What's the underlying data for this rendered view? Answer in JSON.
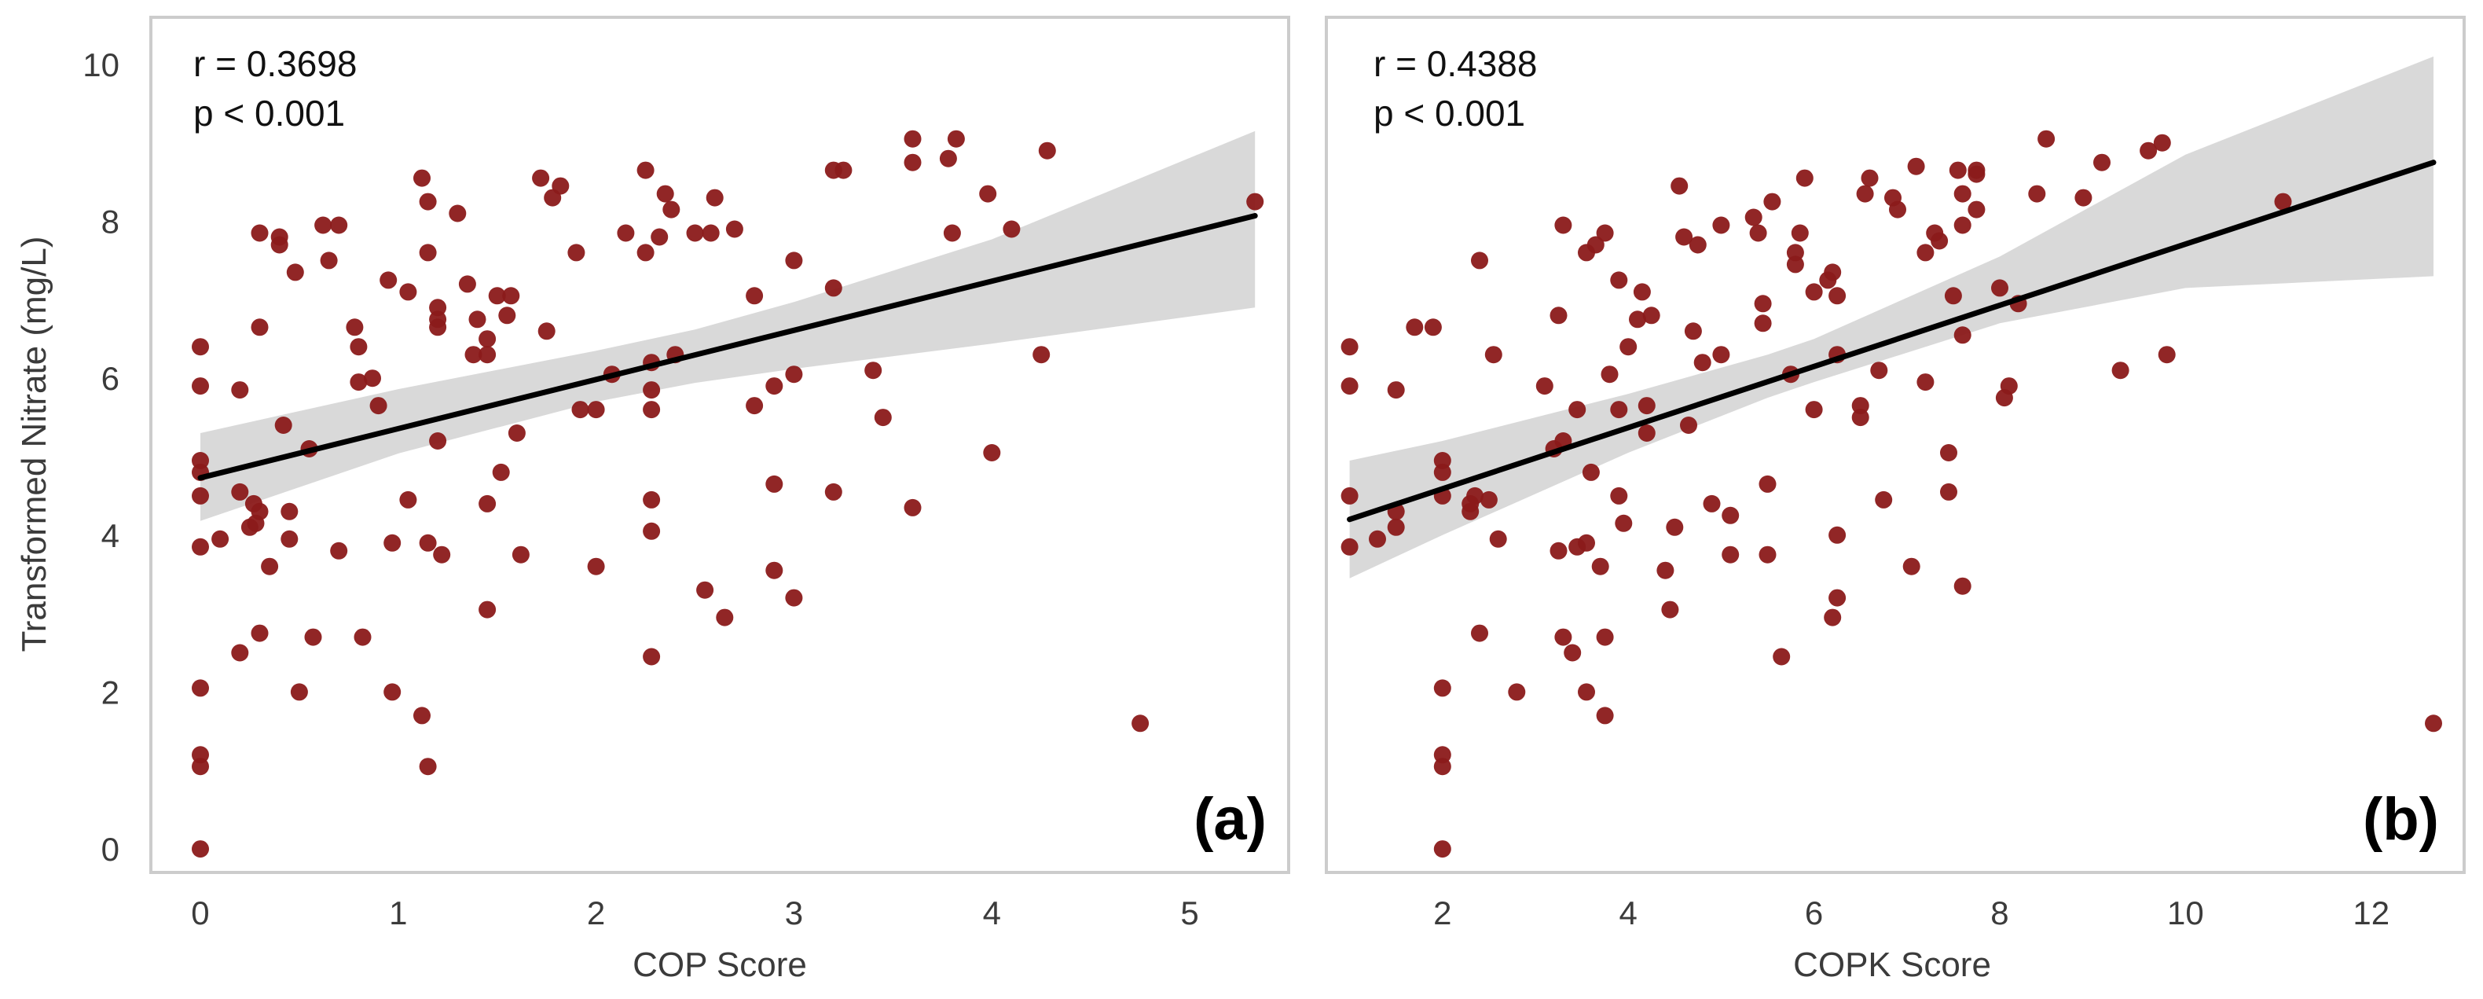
{
  "figure": {
    "ylabel": "Transformed Nitrate (mg/L)"
  },
  "chart_data": [
    {
      "type": "scatter",
      "panel_label": "(a)",
      "xlabel": "COP Score",
      "ylabel": "Transformed Nitrate (mg/L)",
      "xlim": [
        -0.25,
        5.5
      ],
      "ylim": [
        -0.3,
        10.6
      ],
      "xticks": [
        0,
        1,
        2,
        3,
        4,
        5
      ],
      "yticks": [
        0,
        2,
        4,
        6,
        8,
        10
      ],
      "annotation": {
        "r": "r = 0.3698",
        "p": "p < 0.001"
      },
      "regression": {
        "x_range": [
          0,
          5.33
        ],
        "line": [
          [
            0,
            4.73
          ],
          [
            5.33,
            8.07
          ]
        ],
        "ci": [
          [
            0,
            4.18,
            5.3
          ],
          [
            1,
            5.04,
            5.86
          ],
          [
            2,
            5.7,
            6.35
          ],
          [
            2.5,
            5.94,
            6.62
          ],
          [
            3,
            6.12,
            6.97
          ],
          [
            4,
            6.44,
            7.77
          ],
          [
            5.33,
            6.9,
            9.15
          ]
        ]
      },
      "points": [
        [
          0,
          6.4
        ],
        [
          0,
          5.9
        ],
        [
          0,
          4.95
        ],
        [
          0,
          4.8
        ],
        [
          0,
          4.5
        ],
        [
          0,
          3.85
        ],
        [
          0,
          2.05
        ],
        [
          0,
          1.2
        ],
        [
          0,
          1.05
        ],
        [
          0,
          0.0
        ],
        [
          0.1,
          3.95
        ],
        [
          0.2,
          5.85
        ],
        [
          0.2,
          4.55
        ],
        [
          0.2,
          2.5
        ],
        [
          0.25,
          4.1
        ],
        [
          0.27,
          4.4
        ],
        [
          0.28,
          4.15
        ],
        [
          0.3,
          7.85
        ],
        [
          0.3,
          6.65
        ],
        [
          0.3,
          4.3
        ],
        [
          0.3,
          2.75
        ],
        [
          0.35,
          3.6
        ],
        [
          0.4,
          7.7
        ],
        [
          0.4,
          7.8
        ],
        [
          0.42,
          5.4
        ],
        [
          0.45,
          4.3
        ],
        [
          0.45,
          3.95
        ],
        [
          0.48,
          7.35
        ],
        [
          0.5,
          2.0
        ],
        [
          0.55,
          5.1
        ],
        [
          0.57,
          2.7
        ],
        [
          0.62,
          7.95
        ],
        [
          0.65,
          7.5
        ],
        [
          0.7,
          7.95
        ],
        [
          0.7,
          3.8
        ],
        [
          0.78,
          6.65
        ],
        [
          0.8,
          6.4
        ],
        [
          0.8,
          5.95
        ],
        [
          0.82,
          2.7
        ],
        [
          0.87,
          6.0
        ],
        [
          0.9,
          5.65
        ],
        [
          0.95,
          7.25
        ],
        [
          0.97,
          3.9
        ],
        [
          0.97,
          2.0
        ],
        [
          1.05,
          7.1
        ],
        [
          1.05,
          4.45
        ],
        [
          1.12,
          8.55
        ],
        [
          1.12,
          1.7
        ],
        [
          1.15,
          8.25
        ],
        [
          1.15,
          7.6
        ],
        [
          1.15,
          3.9
        ],
        [
          1.15,
          1.05
        ],
        [
          1.2,
          6.9
        ],
        [
          1.2,
          6.75
        ],
        [
          1.2,
          6.65
        ],
        [
          1.2,
          5.2
        ],
        [
          1.22,
          3.75
        ],
        [
          1.3,
          8.1
        ],
        [
          1.35,
          7.2
        ],
        [
          1.38,
          6.3
        ],
        [
          1.4,
          6.75
        ],
        [
          1.45,
          6.5
        ],
        [
          1.45,
          6.3
        ],
        [
          1.45,
          4.4
        ],
        [
          1.45,
          3.05
        ],
        [
          1.5,
          7.05
        ],
        [
          1.52,
          4.8
        ],
        [
          1.55,
          6.8
        ],
        [
          1.57,
          7.05
        ],
        [
          1.6,
          5.3
        ],
        [
          1.62,
          3.75
        ],
        [
          1.72,
          8.55
        ],
        [
          1.75,
          6.6
        ],
        [
          1.78,
          8.3
        ],
        [
          1.82,
          8.45
        ],
        [
          1.9,
          7.6
        ],
        [
          1.92,
          5.6
        ],
        [
          2.0,
          5.6
        ],
        [
          2.0,
          3.6
        ],
        [
          2.08,
          6.05
        ],
        [
          2.15,
          7.85
        ],
        [
          2.25,
          8.65
        ],
        [
          2.25,
          7.6
        ],
        [
          2.28,
          6.2
        ],
        [
          2.28,
          5.85
        ],
        [
          2.28,
          5.6
        ],
        [
          2.28,
          4.45
        ],
        [
          2.28,
          4.05
        ],
        [
          2.28,
          2.45
        ],
        [
          2.32,
          7.8
        ],
        [
          2.35,
          8.35
        ],
        [
          2.38,
          8.15
        ],
        [
          2.4,
          6.3
        ],
        [
          2.5,
          7.85
        ],
        [
          2.55,
          3.3
        ],
        [
          2.58,
          7.85
        ],
        [
          2.6,
          8.3
        ],
        [
          2.65,
          2.95
        ],
        [
          2.7,
          7.9
        ],
        [
          2.8,
          7.05
        ],
        [
          2.8,
          5.65
        ],
        [
          2.9,
          5.9
        ],
        [
          2.9,
          4.65
        ],
        [
          2.9,
          3.55
        ],
        [
          3.0,
          7.5
        ],
        [
          3.0,
          6.05
        ],
        [
          3.0,
          3.2
        ],
        [
          3.2,
          8.65
        ],
        [
          3.2,
          7.15
        ],
        [
          3.2,
          4.55
        ],
        [
          3.25,
          8.65
        ],
        [
          3.4,
          6.1
        ],
        [
          3.45,
          5.5
        ],
        [
          3.6,
          9.05
        ],
        [
          3.6,
          8.75
        ],
        [
          3.6,
          4.35
        ],
        [
          3.78,
          8.8
        ],
        [
          3.8,
          7.85
        ],
        [
          3.82,
          9.05
        ],
        [
          3.98,
          8.35
        ],
        [
          4.0,
          5.05
        ],
        [
          4.1,
          7.9
        ],
        [
          4.25,
          6.3
        ],
        [
          4.28,
          8.9
        ],
        [
          4.75,
          1.6
        ],
        [
          5.33,
          8.25
        ]
      ]
    },
    {
      "type": "scatter",
      "panel_label": "(b)",
      "xlabel": "COPK Score",
      "ylabel": "Transformed Nitrate (mg/L)",
      "xlim": [
        0.75,
        13.0
      ],
      "ylim": [
        -0.3,
        10.6
      ],
      "xticks": [
        2,
        4,
        6,
        8,
        10,
        12
      ],
      "yticks": [
        0,
        2,
        4,
        6,
        8,
        10
      ],
      "annotation": {
        "r": "r = 0.4388",
        "p": "p < 0.001"
      },
      "regression": {
        "x_range": [
          1,
          12.67
        ],
        "line": [
          [
            1,
            4.2
          ],
          [
            12.67,
            8.75
          ]
        ],
        "ci": [
          [
            1,
            3.45,
            4.95
          ],
          [
            2,
            4.0,
            5.2
          ],
          [
            4,
            5.05,
            5.8
          ],
          [
            5.5,
            5.75,
            6.3
          ],
          [
            6,
            5.95,
            6.5
          ],
          [
            8,
            6.7,
            7.55
          ],
          [
            10,
            7.15,
            8.85
          ],
          [
            12.67,
            7.3,
            10.1
          ]
        ]
      },
      "points": [
        [
          1,
          6.4
        ],
        [
          1,
          5.9
        ],
        [
          1,
          4.5
        ],
        [
          1,
          3.85
        ],
        [
          1.3,
          3.95
        ],
        [
          1.5,
          5.85
        ],
        [
          1.5,
          4.1
        ],
        [
          1.5,
          4.3
        ],
        [
          1.7,
          6.65
        ],
        [
          1.9,
          6.65
        ],
        [
          2,
          4.95
        ],
        [
          2,
          4.8
        ],
        [
          2,
          4.5
        ],
        [
          2,
          2.05
        ],
        [
          2,
          1.2
        ],
        [
          2,
          1.05
        ],
        [
          2,
          0.0
        ],
        [
          2.3,
          4.4
        ],
        [
          2.3,
          4.3
        ],
        [
          2.35,
          4.5
        ],
        [
          2.4,
          7.5
        ],
        [
          2.4,
          2.75
        ],
        [
          2.5,
          4.45
        ],
        [
          2.55,
          6.3
        ],
        [
          2.6,
          3.95
        ],
        [
          2.8,
          2.0
        ],
        [
          3.1,
          5.9
        ],
        [
          3.2,
          5.1
        ],
        [
          3.25,
          3.8
        ],
        [
          3.25,
          6.8
        ],
        [
          3.3,
          7.95
        ],
        [
          3.3,
          5.2
        ],
        [
          3.3,
          2.7
        ],
        [
          3.4,
          2.5
        ],
        [
          3.45,
          5.6
        ],
        [
          3.45,
          3.85
        ],
        [
          3.55,
          7.6
        ],
        [
          3.55,
          3.9
        ],
        [
          3.55,
          2.0
        ],
        [
          3.6,
          4.8
        ],
        [
          3.65,
          7.7
        ],
        [
          3.7,
          3.6
        ],
        [
          3.75,
          7.85
        ],
        [
          3.75,
          2.7
        ],
        [
          3.75,
          1.7
        ],
        [
          3.8,
          6.05
        ],
        [
          3.9,
          7.25
        ],
        [
          3.9,
          5.6
        ],
        [
          3.9,
          4.5
        ],
        [
          3.95,
          4.15
        ],
        [
          4.0,
          6.4
        ],
        [
          4.1,
          6.75
        ],
        [
          4.15,
          7.1
        ],
        [
          4.2,
          5.65
        ],
        [
          4.2,
          5.3
        ],
        [
          4.25,
          6.8
        ],
        [
          4.4,
          3.55
        ],
        [
          4.45,
          3.05
        ],
        [
          4.5,
          4.1
        ],
        [
          4.55,
          8.45
        ],
        [
          4.6,
          7.8
        ],
        [
          4.65,
          5.4
        ],
        [
          4.7,
          6.6
        ],
        [
          4.75,
          7.7
        ],
        [
          4.8,
          6.2
        ],
        [
          4.9,
          4.4
        ],
        [
          5.0,
          7.95
        ],
        [
          5.0,
          6.3
        ],
        [
          5.1,
          4.25
        ],
        [
          5.1,
          3.75
        ],
        [
          5.35,
          8.05
        ],
        [
          5.4,
          7.85
        ],
        [
          5.45,
          6.95
        ],
        [
          5.45,
          6.7
        ],
        [
          5.5,
          4.65
        ],
        [
          5.5,
          3.75
        ],
        [
          5.55,
          8.25
        ],
        [
          5.65,
          2.45
        ],
        [
          5.75,
          6.05
        ],
        [
          5.8,
          7.6
        ],
        [
          5.8,
          7.45
        ],
        [
          5.85,
          7.85
        ],
        [
          5.9,
          8.55
        ],
        [
          6.0,
          7.1
        ],
        [
          6.0,
          5.6
        ],
        [
          6.15,
          7.25
        ],
        [
          6.2,
          7.35
        ],
        [
          6.2,
          2.95
        ],
        [
          6.25,
          7.05
        ],
        [
          6.25,
          6.3
        ],
        [
          6.25,
          4.0
        ],
        [
          6.25,
          3.2
        ],
        [
          6.5,
          5.65
        ],
        [
          6.5,
          5.5
        ],
        [
          6.55,
          8.35
        ],
        [
          6.6,
          8.55
        ],
        [
          6.7,
          6.1
        ],
        [
          6.75,
          4.45
        ],
        [
          6.85,
          8.3
        ],
        [
          6.9,
          8.15
        ],
        [
          7.05,
          3.6
        ],
        [
          7.1,
          8.7
        ],
        [
          7.2,
          7.6
        ],
        [
          7.2,
          5.95
        ],
        [
          7.3,
          7.85
        ],
        [
          7.35,
          7.75
        ],
        [
          7.45,
          5.05
        ],
        [
          7.45,
          4.55
        ],
        [
          7.5,
          7.05
        ],
        [
          7.55,
          8.65
        ],
        [
          7.6,
          8.35
        ],
        [
          7.6,
          7.95
        ],
        [
          7.6,
          6.55
        ],
        [
          7.6,
          3.35
        ],
        [
          7.75,
          8.6
        ],
        [
          7.75,
          8.15
        ],
        [
          7.75,
          8.65
        ],
        [
          8.0,
          7.15
        ],
        [
          8.05,
          5.75
        ],
        [
          8.1,
          5.9
        ],
        [
          8.2,
          6.95
        ],
        [
          8.4,
          8.35
        ],
        [
          8.5,
          9.05
        ],
        [
          8.9,
          8.3
        ],
        [
          9.1,
          8.75
        ],
        [
          9.3,
          6.1
        ],
        [
          9.6,
          8.9
        ],
        [
          9.75,
          9.0
        ],
        [
          9.8,
          6.3
        ],
        [
          11.05,
          8.25
        ],
        [
          12.67,
          1.6
        ]
      ]
    }
  ]
}
